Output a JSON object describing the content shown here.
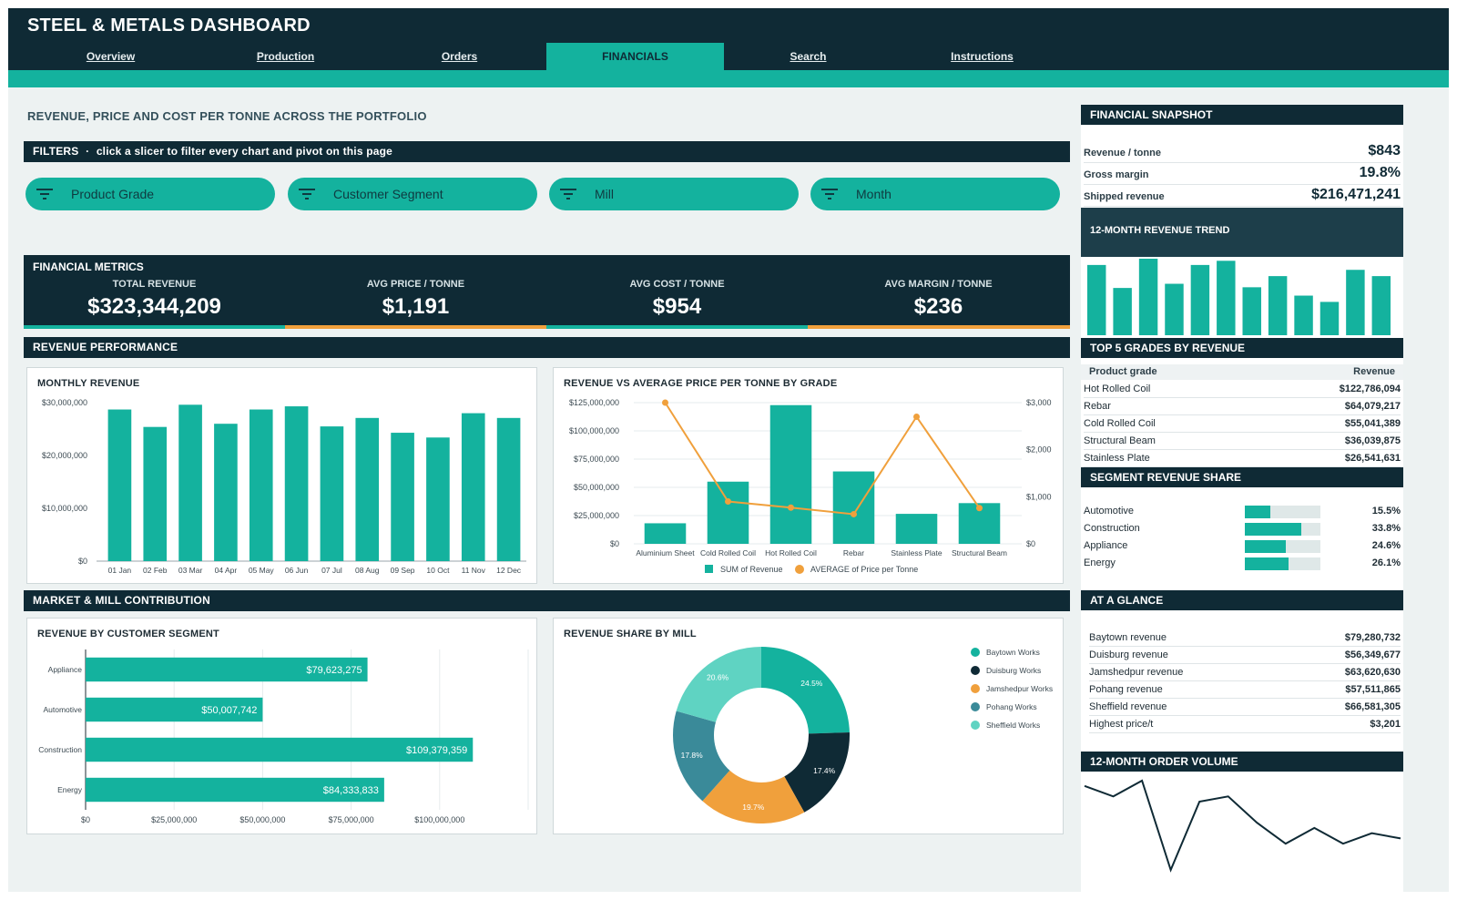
{
  "app": {
    "title": "STEEL & METALS DASHBOARD"
  },
  "nav": {
    "tabs": [
      {
        "label": "Overview"
      },
      {
        "label": "Production"
      },
      {
        "label": "Orders"
      },
      {
        "label": "FINANCIALS",
        "active": true
      },
      {
        "label": "Search"
      },
      {
        "label": "Instructions"
      }
    ]
  },
  "page": {
    "title": "REVENUE, PRICE AND COST PER TONNE ACROSS THE PORTFOLIO"
  },
  "filters": {
    "title": "FILTERS",
    "hint": "click a slicer to filter every chart and pivot on this page",
    "slicers": [
      {
        "label": "Product Grade",
        "icon": "filter-icon"
      },
      {
        "label": "Customer Segment",
        "icon": "filter-icon"
      },
      {
        "label": "Mill",
        "icon": "filter-icon"
      },
      {
        "label": "Month",
        "icon": "filter-icon"
      }
    ]
  },
  "metrics": {
    "title": "FINANCIAL METRICS",
    "items": [
      {
        "label": "TOTAL REVENUE",
        "value": "$323,344,209",
        "accent": "#14b29e"
      },
      {
        "label": "AVG PRICE / TONNE",
        "value": "$1,191",
        "accent": "#f0a03c"
      },
      {
        "label": "AVG COST / TONNE",
        "value": "$954",
        "accent": "#14b29e"
      },
      {
        "label": "AVG MARGIN / TONNE",
        "value": "$236",
        "accent": "#f0a03c"
      }
    ]
  },
  "sections": {
    "revenue_performance": "REVENUE PERFORMANCE",
    "market_mill": "MARKET & MILL CONTRIBUTION"
  },
  "colors": {
    "navy": "#0f2a35",
    "teal": "#14b29e",
    "orange": "#f0a03c",
    "dark_teal": "#3a8a99",
    "light_teal": "#5fd3c2"
  },
  "chart_data": [
    {
      "id": "monthly_revenue",
      "type": "bar",
      "title": "MONTHLY REVENUE",
      "categories": [
        "01 Jan",
        "02 Feb",
        "03 Mar",
        "04 Apr",
        "05 May",
        "06 Jun",
        "07 Jul",
        "08 Aug",
        "09 Sep",
        "10 Oct",
        "11 Nov",
        "12 Dec"
      ],
      "values": [
        28700000,
        25400000,
        29600000,
        26000000,
        28700000,
        29300000,
        25500000,
        27100000,
        24300000,
        23400000,
        28000000,
        27100000
      ],
      "yticks": [
        "$0",
        "$10,000,000",
        "$20,000,000",
        "$30,000,000"
      ],
      "ylim": [
        0,
        30000000
      ]
    },
    {
      "id": "revenue_vs_price",
      "type": "bar",
      "title": "REVENUE VS AVERAGE PRICE PER TONNE BY GRADE",
      "categories": [
        "Aluminium Sheet",
        "Cold Rolled Coil",
        "Hot Rolled Coil",
        "Rebar",
        "Stainless Plate",
        "Structural Beam"
      ],
      "series": [
        {
          "name": "SUM of Revenue",
          "type": "bar",
          "axis": "left",
          "values": [
            18200000,
            55041389,
            122786094,
            64079217,
            26541631,
            36039875
          ]
        },
        {
          "name": "AVERAGE of Price per Tonne",
          "type": "line",
          "axis": "right",
          "values": [
            3000,
            900,
            770,
            630,
            2700,
            760
          ]
        }
      ],
      "yticks_left": [
        "$0",
        "$25,000,000",
        "$50,000,000",
        "$75,000,000",
        "$100,000,000",
        "$125,000,000"
      ],
      "yticks_right": [
        "$0",
        "$1,000",
        "$2,000",
        "$3,000"
      ],
      "ylim_left": [
        0,
        125000000
      ],
      "ylim_right": [
        0,
        3000
      ]
    },
    {
      "id": "revenue_by_segment",
      "type": "bar",
      "orientation": "horizontal",
      "title": "REVENUE BY CUSTOMER SEGMENT",
      "categories": [
        "Appliance",
        "Automotive",
        "Construction",
        "Energy"
      ],
      "values": [
        79623275,
        50007742,
        109379359,
        84333833
      ],
      "value_labels": [
        "$79,623,275",
        "$50,007,742",
        "$109,379,359",
        "$84,333,833"
      ],
      "xticks": [
        "$0",
        "$25,000,000",
        "$50,000,000",
        "$75,000,000",
        "$100,000,000"
      ],
      "xlim": [
        0,
        125000000
      ]
    },
    {
      "id": "revenue_share_by_mill",
      "type": "pie",
      "title": "REVENUE SHARE BY MILL",
      "donut": true,
      "slices": [
        {
          "name": "Baytown Works",
          "value": 24.5,
          "label": "24.5%",
          "color": "#14b29e"
        },
        {
          "name": "Duisburg Works",
          "value": 17.4,
          "label": "17.4%",
          "color": "#0f2a35"
        },
        {
          "name": "Jamshedpur Works",
          "value": 19.7,
          "label": "19.7%",
          "color": "#f0a03c"
        },
        {
          "name": "Pohang Works",
          "value": 17.8,
          "label": "17.8%",
          "color": "#3a8a99"
        },
        {
          "name": "Sheffield Works",
          "value": 20.6,
          "label": "20.6%",
          "color": "#5fd3c2"
        }
      ]
    },
    {
      "id": "trend_12m_revenue",
      "type": "bar",
      "title": "12-MONTH REVENUE TREND",
      "values": [
        28700000,
        25400000,
        29600000,
        26000000,
        28700000,
        29300000,
        25500000,
        27100000,
        24300000,
        23400000,
        28000000,
        27100000
      ]
    },
    {
      "id": "order_volume_12m",
      "type": "line",
      "title": "12-MONTH ORDER VOLUME",
      "values": [
        62,
        58,
        64,
        30,
        56,
        58,
        48,
        40,
        46,
        40,
        44,
        42
      ]
    }
  ],
  "side": {
    "snapshot": {
      "title": "FINANCIAL SNAPSHOT",
      "rows": [
        {
          "label": "Revenue / tonne",
          "value": "$843"
        },
        {
          "label": "Gross margin",
          "value": "19.8%"
        },
        {
          "label": "Shipped revenue",
          "value": "$216,471,241"
        }
      ]
    },
    "trend_title": "12-MONTH REVENUE TREND",
    "top_grades": {
      "title": "TOP 5 GRADES BY REVENUE",
      "col1": "Product grade",
      "col2": "Revenue",
      "rows": [
        {
          "name": "Hot Rolled Coil",
          "value": "$122,786,094"
        },
        {
          "name": "Rebar",
          "value": "$64,079,217"
        },
        {
          "name": "Cold Rolled Coil",
          "value": "$55,041,389"
        },
        {
          "name": "Structural Beam",
          "value": "$36,039,875"
        },
        {
          "name": "Stainless Plate",
          "value": "$26,541,631"
        }
      ]
    },
    "segment_share": {
      "title": "SEGMENT REVENUE SHARE",
      "rows": [
        {
          "name": "Automotive",
          "pct": 15.5,
          "label": "15.5%"
        },
        {
          "name": "Construction",
          "pct": 33.8,
          "label": "33.8%"
        },
        {
          "name": "Appliance",
          "pct": 24.6,
          "label": "24.6%"
        },
        {
          "name": "Energy",
          "pct": 26.1,
          "label": "26.1%"
        }
      ]
    },
    "glance": {
      "title": "AT A GLANCE",
      "rows": [
        {
          "label": "Baytown revenue",
          "value": "$79,280,732"
        },
        {
          "label": "Duisburg revenue",
          "value": "$56,349,677"
        },
        {
          "label": "Jamshedpur revenue",
          "value": "$63,620,630"
        },
        {
          "label": "Pohang revenue",
          "value": "$57,511,865"
        },
        {
          "label": "Sheffield revenue",
          "value": "$66,581,305"
        },
        {
          "label": "Highest price/t",
          "value": "$3,201"
        }
      ]
    },
    "order_volume_title": "12-MONTH ORDER VOLUME"
  }
}
